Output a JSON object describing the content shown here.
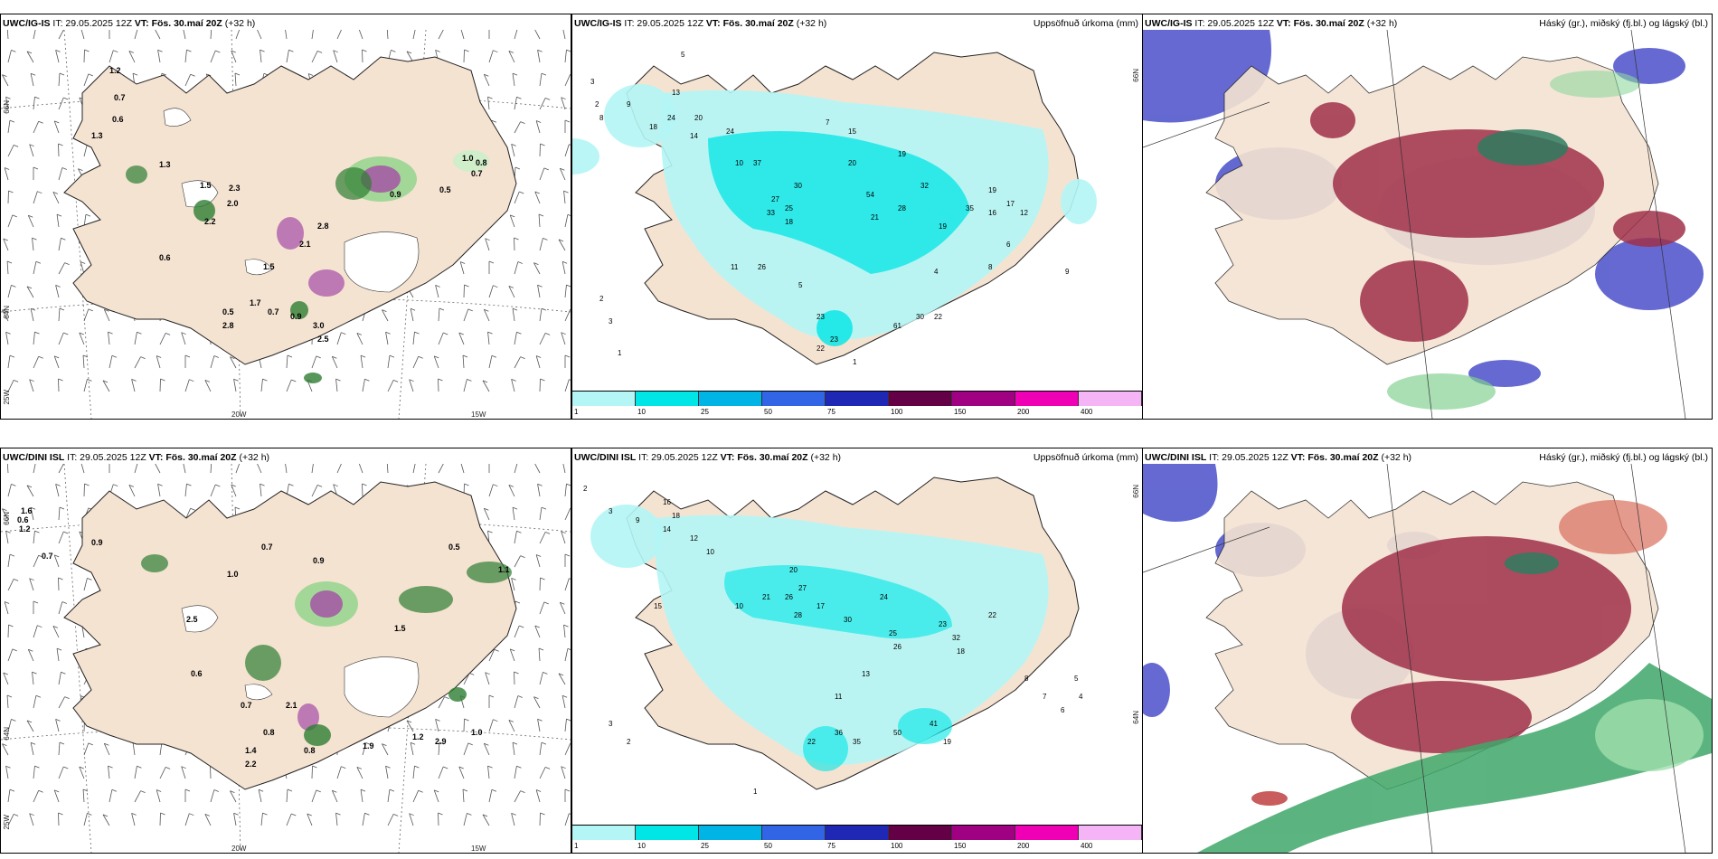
{
  "panels": {
    "top_left": {
      "model": "UWC/IG-IS",
      "init": "IT: 29.05.2025 12Z",
      "vt_label": "VT:",
      "vt_value": "Fös. 30.maí 20Z",
      "lead": "(+32 h)"
    },
    "top_mid": {
      "model": "UWC/IG-IS",
      "init": "IT: 29.05.2025 12Z",
      "vt_label": "VT:",
      "vt_value": "Fös. 30.maí 20Z",
      "lead": "(+32 h)",
      "title": "Uppsöfnuð úrkoma (mm)"
    },
    "top_right": {
      "model": "UWC/IG-IS",
      "init": "IT: 29.05.2025 12Z",
      "vt_label": "VT:",
      "vt_value": "Fös. 30.maí 20Z",
      "lead": "(+32 h)",
      "title": "Háský (gr.), miðský (fj.bl.) og lágský (bl.)"
    },
    "bot_left": {
      "model": "UWC/DINI ISL",
      "init": "IT: 29.05.2025 12Z",
      "vt_label": "VT:",
      "vt_value": "Fös. 30.maí 20Z",
      "lead": "(+32 h)"
    },
    "bot_mid": {
      "model": "UWC/DINI ISL",
      "init": "IT: 29.05.2025 12Z",
      "vt_label": "VT:",
      "vt_value": "Fös. 30.maí 20Z",
      "lead": "(+32 h)",
      "title": "Uppsöfnuð úrkoma (mm)"
    },
    "bot_right": {
      "model": "UWC/DINI ISL",
      "init": "IT: 29.05.2025 12Z",
      "vt_label": "VT:",
      "vt_value": "Fös. 30.maí 20Z",
      "lead": "(+32 h)",
      "title": "Háský (gr.), miðský (fj.bl.) og lágský (bl.)"
    }
  },
  "axes": {
    "lat66": "66N",
    "lat64": "64N",
    "lon25": "25W",
    "lon20": "20W",
    "lon15": "15W"
  },
  "colorbar": {
    "labels": [
      "1",
      "10",
      "25",
      "50",
      "75",
      "100",
      "150",
      "200",
      "400"
    ],
    "colors": [
      "#b4f5f5",
      "#00e6e6",
      "#00b4e6",
      "#3264e6",
      "#1e28b4",
      "#640046",
      "#a00082",
      "#f000b4",
      "#f5b4f5"
    ]
  },
  "precip_labels_top": [
    "5",
    "3",
    "2",
    "8",
    "9",
    "24",
    "13",
    "18",
    "20",
    "24",
    "14",
    "10",
    "37",
    "27",
    "30",
    "33",
    "25",
    "54",
    "32",
    "28",
    "35",
    "16",
    "19",
    "17",
    "12",
    "22",
    "61",
    "30",
    "23",
    "26",
    "11",
    "5",
    "4",
    "1",
    "7",
    "15",
    "6",
    "21",
    "19",
    "20",
    "18",
    "19",
    "9",
    "2",
    "1",
    "3",
    "22",
    "8",
    "23"
  ],
  "precip_labels_bot": [
    "2",
    "3",
    "9",
    "18",
    "16",
    "14",
    "12",
    "10",
    "20",
    "27",
    "26",
    "28",
    "30",
    "24",
    "23",
    "25",
    "22",
    "32",
    "18",
    "13",
    "11",
    "41",
    "50",
    "19",
    "8",
    "7",
    "6",
    "5",
    "4",
    "1",
    "15",
    "17",
    "10",
    "21",
    "35",
    "22",
    "36",
    "26",
    "3",
    "2"
  ],
  "snow_labels_top": [
    "1.2",
    "0.7",
    "0.6",
    "1.3",
    "1.3",
    "1.5",
    "2.3",
    "2.0",
    "2.2",
    "2.8",
    "2.1",
    "1.5",
    "0.6",
    "0.9",
    "0.5",
    "0.8",
    "0.7",
    "1.0",
    "1.7",
    "0.7",
    "0.9",
    "2.8",
    "3.0",
    "0.5",
    "2.5"
  ],
  "snow_labels_bot": [
    "1.6",
    "0.6",
    "1.2",
    "0.7",
    "0.9",
    "1.0",
    "0.7",
    "0.9",
    "0.5",
    "1.1",
    "2.5",
    "1.5",
    "0.6",
    "0.7",
    "0.8",
    "1.2",
    "2.9",
    "1.0",
    "1.4",
    "2.2",
    "0.8",
    "2.1",
    "1.9"
  ]
}
